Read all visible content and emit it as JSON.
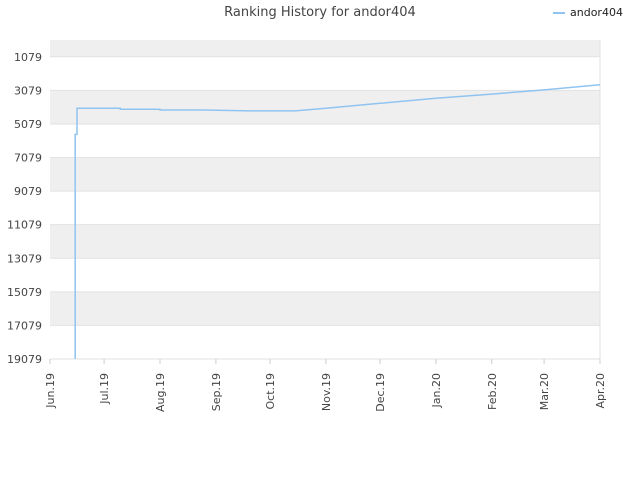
{
  "chart_data": {
    "type": "line",
    "title": "Ranking History for andor404",
    "xlabel": "",
    "ylabel": "",
    "y_inverted": true,
    "ylim": [
      19079,
      79
    ],
    "y_ticks": [
      1079,
      3079,
      5079,
      7079,
      9079,
      11079,
      13079,
      15079,
      17079,
      19079
    ],
    "x_ticks": [
      "Jun.19",
      "Jul.19",
      "Aug.19",
      "Sep.19",
      "Oct.19",
      "Nov.19",
      "Dec.19",
      "Jan.20",
      "Feb.20",
      "Mar.20",
      "Apr.20"
    ],
    "legend": {
      "position": "top-right"
    },
    "grid": "alternating horizontal bands",
    "series": [
      {
        "name": "andor404",
        "color": "#90c4f0",
        "points": [
          {
            "x": "2019-06-15",
            "y": 19079
          },
          {
            "x": "2019-06-15",
            "y": 5700
          },
          {
            "x": "2019-06-16",
            "y": 5700
          },
          {
            "x": "2019-06-16",
            "y": 4150
          },
          {
            "x": "2019-07-10",
            "y": 4150
          },
          {
            "x": "2019-07-10",
            "y": 4200
          },
          {
            "x": "2019-08-01",
            "y": 4200
          },
          {
            "x": "2019-08-01",
            "y": 4250
          },
          {
            "x": "2019-08-25",
            "y": 4250
          },
          {
            "x": "2019-09-20",
            "y": 4300
          },
          {
            "x": "2019-10-15",
            "y": 4300
          },
          {
            "x": "2019-11-01",
            "y": 4150
          },
          {
            "x": "2019-12-01",
            "y": 3850
          },
          {
            "x": "2020-01-01",
            "y": 3550
          },
          {
            "x": "2020-02-01",
            "y": 3300
          },
          {
            "x": "2020-03-01",
            "y": 3050
          },
          {
            "x": "2020-04-01",
            "y": 2750
          }
        ]
      }
    ]
  }
}
